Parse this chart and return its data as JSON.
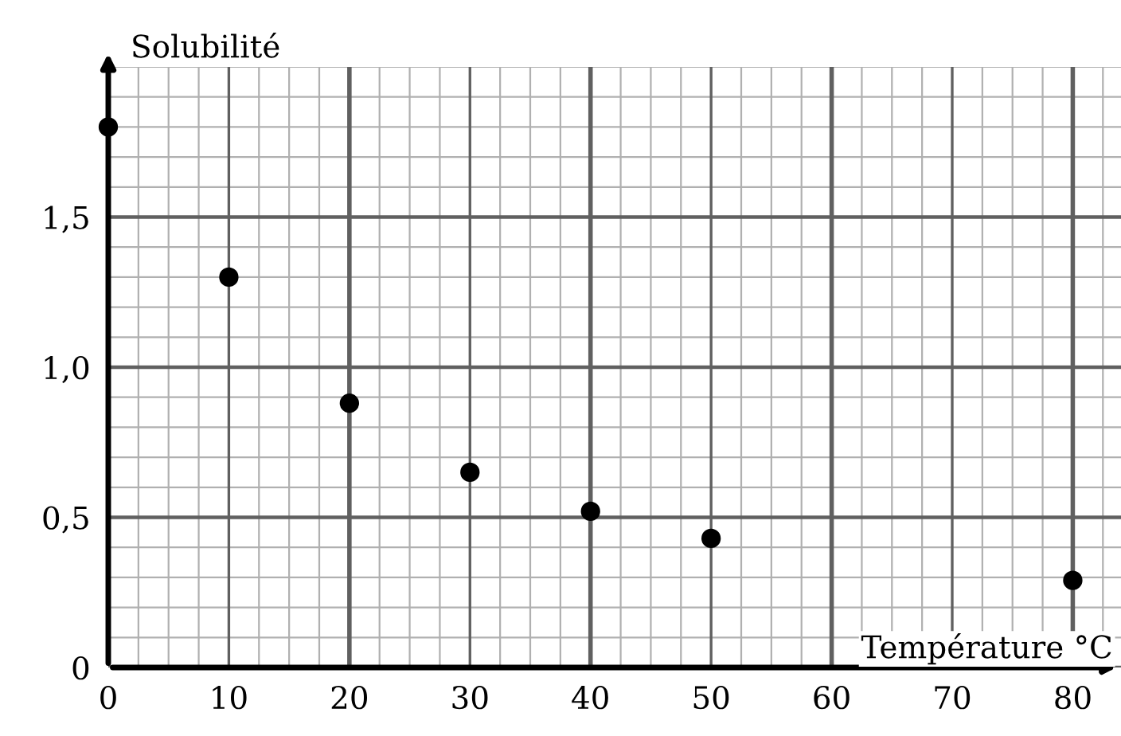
{
  "chart_data": {
    "type": "scatter",
    "xlabel": "Température °C",
    "ylabel": "Solubilité",
    "x": [
      0,
      10,
      20,
      30,
      40,
      50,
      80
    ],
    "values": [
      1.8,
      1.3,
      0.88,
      0.65,
      0.52,
      0.43,
      0.29
    ],
    "color": "#000000",
    "marker": "circle",
    "xlim": [
      0,
      84
    ],
    "ylim": [
      0,
      2.0
    ],
    "xticks": [
      0,
      10,
      20,
      30,
      40,
      50,
      60,
      70,
      80
    ],
    "yticks": [
      0,
      {
        "value": 0.5,
        "label": "0,5"
      },
      {
        "value": 1.0,
        "label": "1,0"
      },
      {
        "value": 1.5,
        "label": "1,5"
      }
    ],
    "grid": true
  }
}
